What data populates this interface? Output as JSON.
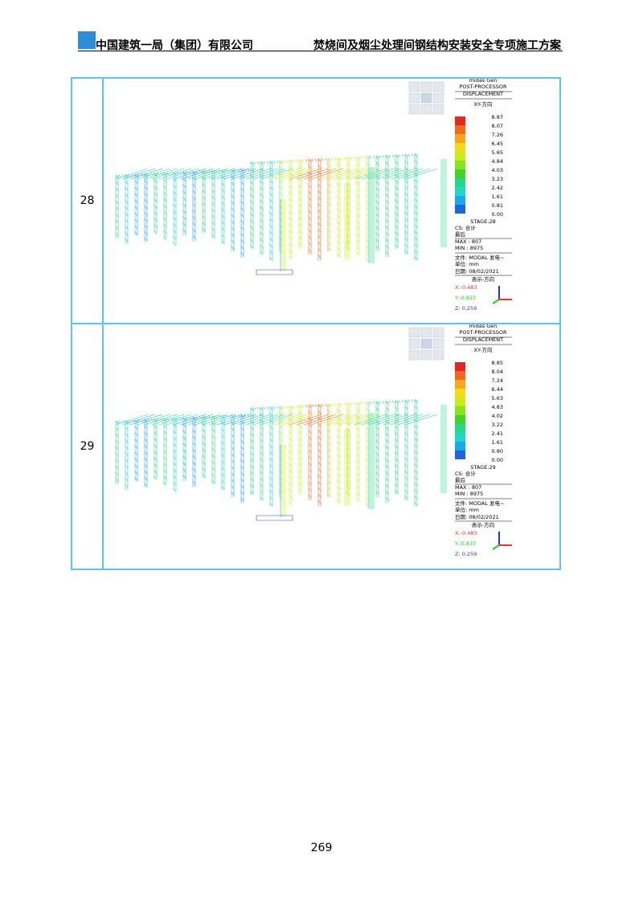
{
  "header": {
    "company": "中国建筑一局（集团）有限公司",
    "title": "焚烧间及烟尘处理间钢结构安装安全专项施工方案"
  },
  "table": {
    "rows": [
      {
        "stage": "28",
        "panel": {
          "app": "midas Gen",
          "module": "POST-PROCESSOR",
          "result": "DISPLACEMENT",
          "direction": "XY-方向",
          "legend": [
            "8.87",
            "8.07",
            "7.26",
            "6.45",
            "5.65",
            "4.84",
            "4.03",
            "3.23",
            "2.42",
            "1.61",
            "0.81",
            "0.00"
          ],
          "stage_label": "STAGE:28",
          "cs": "CS: 合计",
          "step": "最后",
          "max": "MAX : 807",
          "min": "MIN : 8975",
          "file": "文件: MODAL 发电~",
          "unit": "单位: mm",
          "date": "日期: 08/02/2021",
          "view": "表示-方向",
          "vx": "X:-0.483",
          "vy": "Y:-0.837",
          "vz": "Z: 0.259"
        }
      },
      {
        "stage": "29",
        "panel": {
          "app": "midas Gen",
          "module": "POST-PROCESSOR",
          "result": "DISPLACEMENT",
          "direction": "XY-方向",
          "legend": [
            "8.85",
            "8.04",
            "7.24",
            "6.44",
            "5.63",
            "4.83",
            "4.02",
            "3.22",
            "2.41",
            "1.61",
            "0.80",
            "0.00"
          ],
          "stage_label": "STAGE:29",
          "cs": "CS: 合计",
          "step": "最后",
          "max": "MAX : 807",
          "min": "MIN : 8975",
          "file": "文件: MODAL 发电~",
          "unit": "单位: mm",
          "date": "日期: 08/02/2021",
          "view": "表示-方向",
          "vx": "X:-0.483",
          "vy": "Y:-0.837",
          "vz": "Z: 0.259"
        }
      }
    ]
  },
  "page_number": "269"
}
